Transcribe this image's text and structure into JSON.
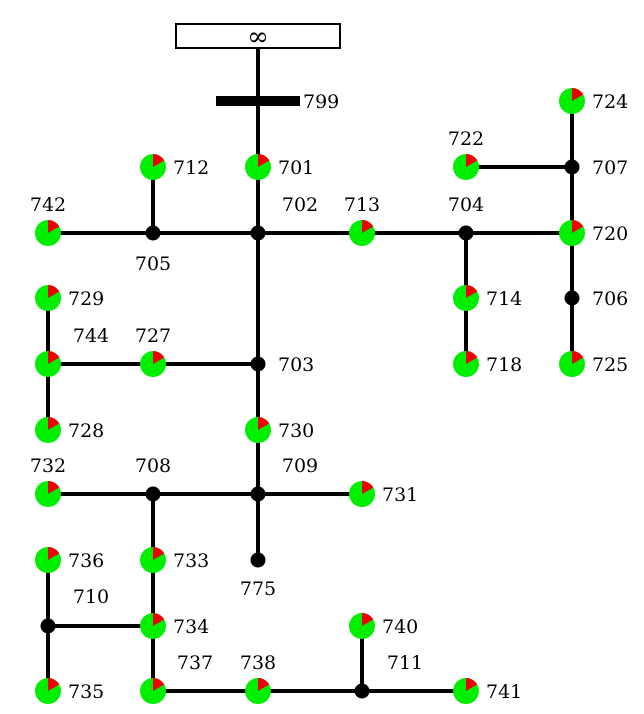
{
  "source": {
    "symbol": "∞"
  },
  "buses": {
    "n799": "799",
    "n701": "701",
    "n702": "702",
    "n703": "703",
    "n704": "704",
    "n705": "705",
    "n706": "706",
    "n707": "707",
    "n708": "708",
    "n709": "709",
    "n710": "710",
    "n711": "711",
    "n712": "712",
    "n713": "713",
    "n714": "714",
    "n718": "718",
    "n720": "720",
    "n722": "722",
    "n724": "724",
    "n725": "725",
    "n727": "727",
    "n728": "728",
    "n729": "729",
    "n730": "730",
    "n731": "731",
    "n732": "732",
    "n733": "733",
    "n734": "734",
    "n735": "735",
    "n736": "736",
    "n737": "737",
    "n738": "738",
    "n740": "740",
    "n741": "741",
    "n742": "742",
    "n744": "744",
    "n775": "775"
  },
  "colors": {
    "line": "#000000",
    "load": "#00ee00",
    "load_share": "#ee0000",
    "junction": "#000000"
  }
}
